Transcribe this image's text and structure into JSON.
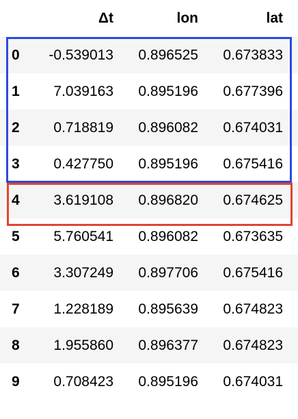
{
  "table": {
    "columns": [
      "",
      "Δt",
      "lon",
      "lat"
    ],
    "rows": [
      {
        "index": "0",
        "dt": "-0.539013",
        "lon": "0.896525",
        "lat": "0.673833"
      },
      {
        "index": "1",
        "dt": "7.039163",
        "lon": "0.895196",
        "lat": "0.677396"
      },
      {
        "index": "2",
        "dt": "0.718819",
        "lon": "0.896082",
        "lat": "0.674031"
      },
      {
        "index": "3",
        "dt": "0.427750",
        "lon": "0.895196",
        "lat": "0.675416"
      },
      {
        "index": "4",
        "dt": "3.619108",
        "lon": "0.896820",
        "lat": "0.674625"
      },
      {
        "index": "5",
        "dt": "5.760541",
        "lon": "0.896082",
        "lat": "0.673635"
      },
      {
        "index": "6",
        "dt": "3.307249",
        "lon": "0.897706",
        "lat": "0.675416"
      },
      {
        "index": "7",
        "dt": "1.228189",
        "lon": "0.895639",
        "lat": "0.674823"
      },
      {
        "index": "8",
        "dt": "1.955860",
        "lon": "0.896377",
        "lat": "0.674823"
      },
      {
        "index": "9",
        "dt": "0.708423",
        "lon": "0.895196",
        "lat": "0.674031"
      }
    ]
  },
  "highlights": {
    "blue": {
      "color": "#2d49e0",
      "rows": [
        "0",
        "1",
        "2",
        "3"
      ]
    },
    "red": {
      "color": "#e0452d",
      "rows": [
        "4"
      ]
    }
  }
}
